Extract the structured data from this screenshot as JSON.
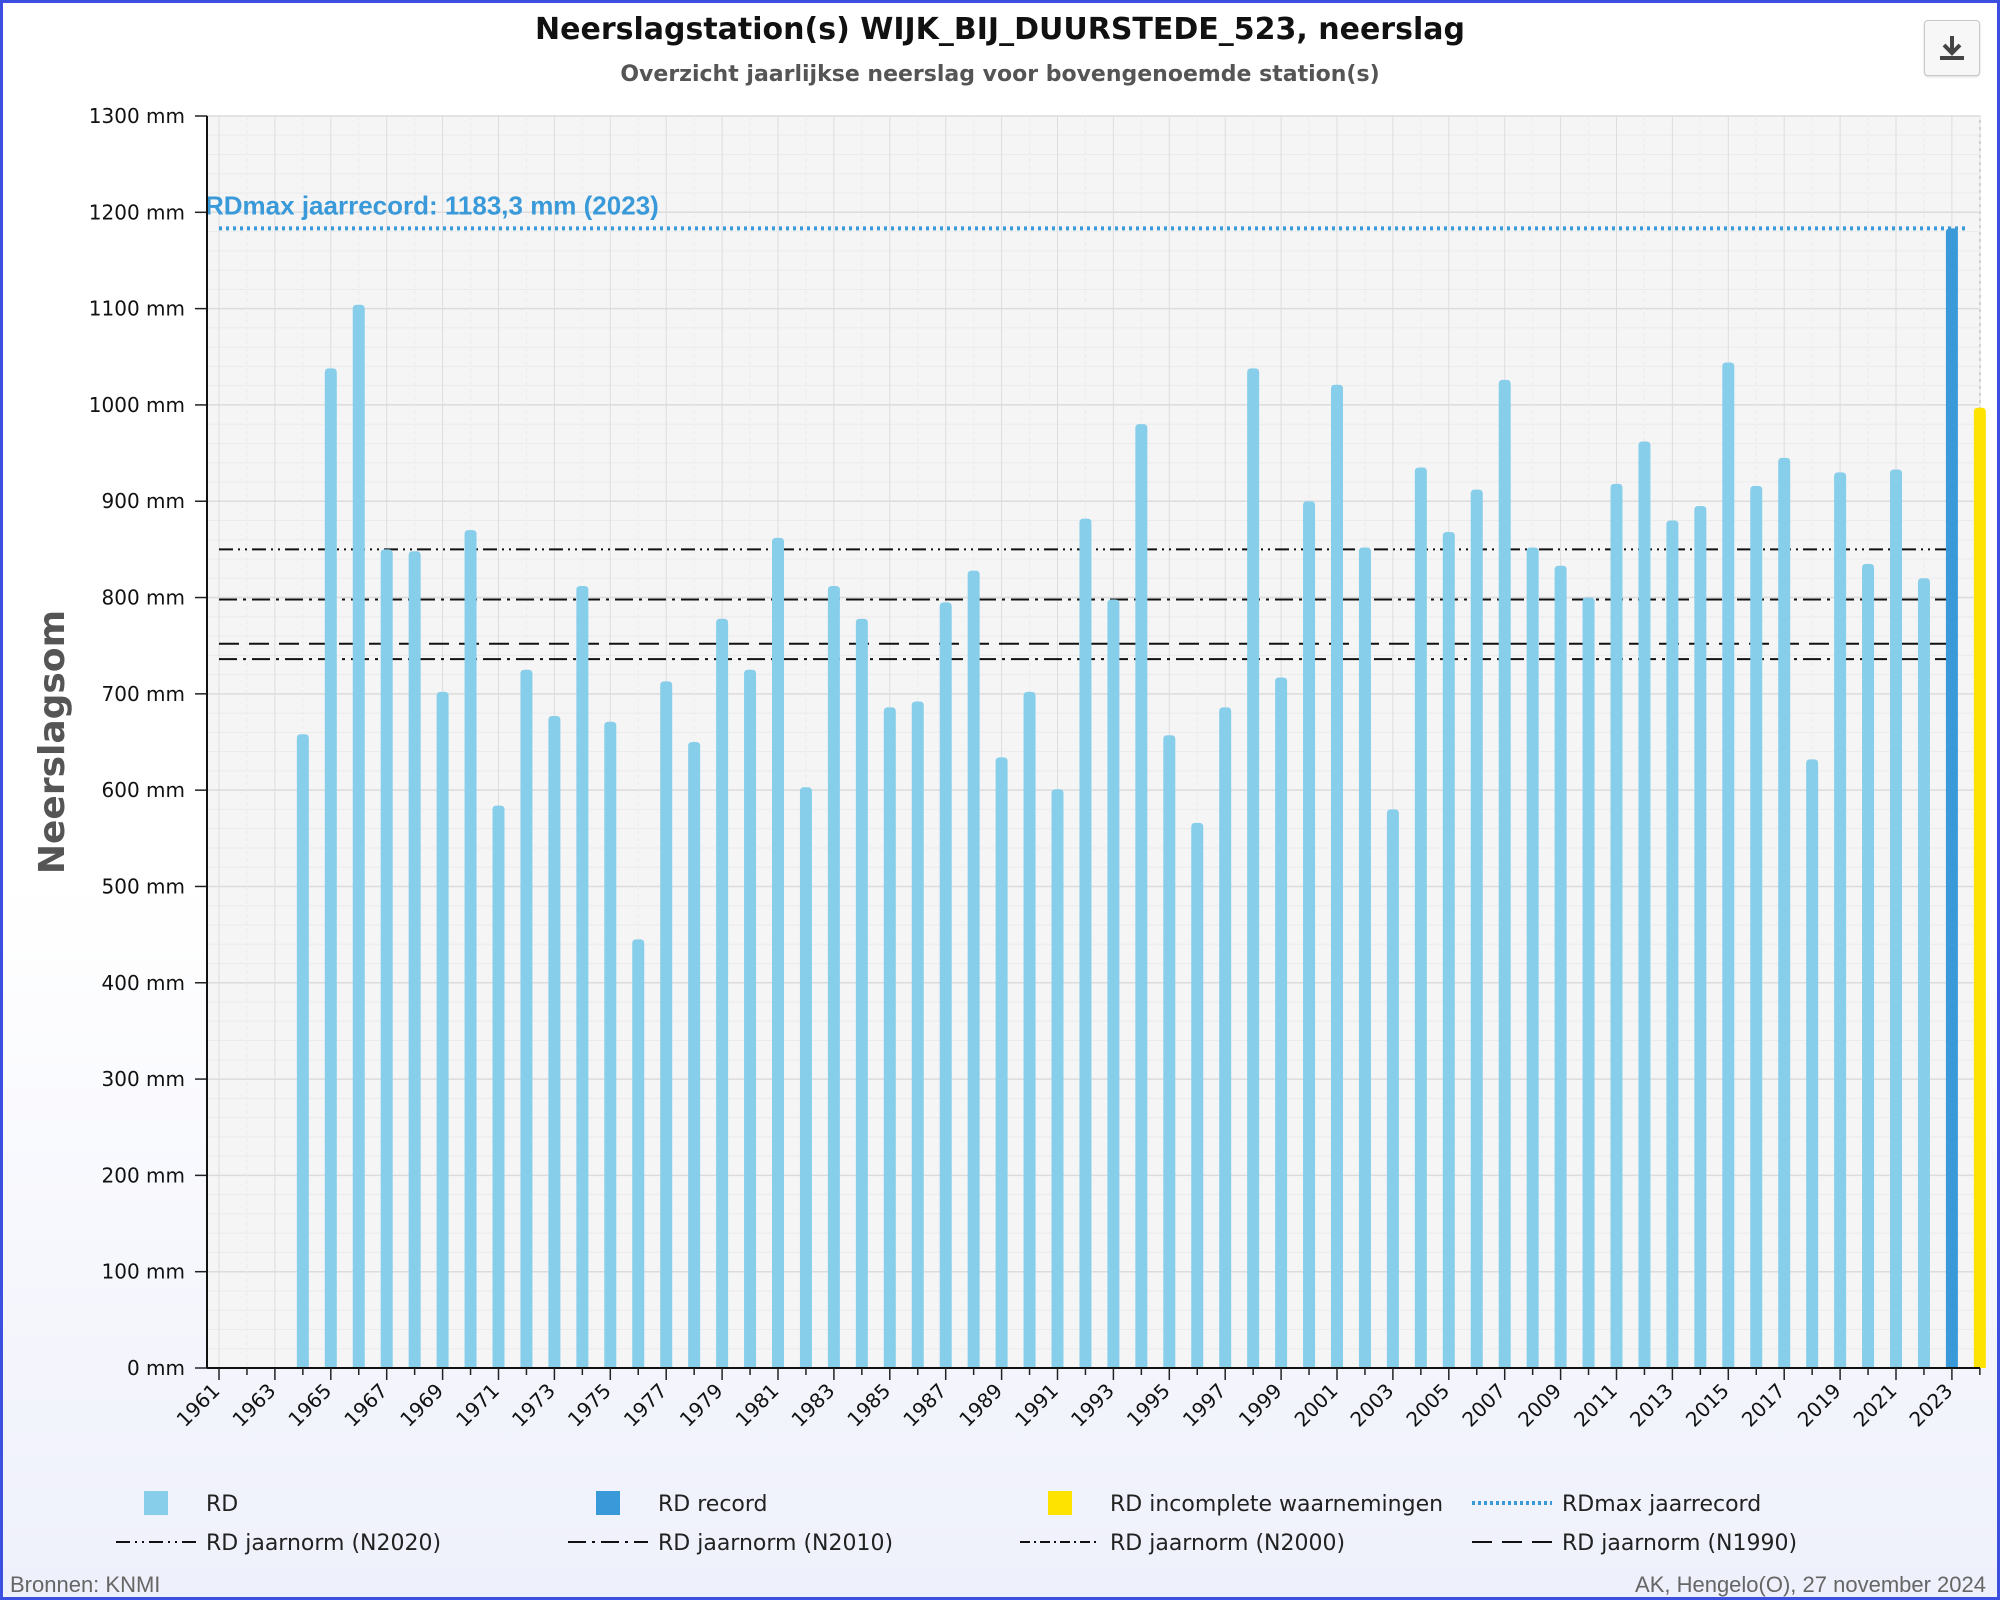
{
  "title": "Neerslagstation(s) WIJK_BIJ_DUURSTEDE_523, neerslag",
  "subtitle": "Overzicht jaarlijkse neerslag voor bovengenoemde station(s)",
  "export_icon": "download-icon",
  "record_annotation": "RDmax jaarrecord: 1183,3 mm (2023)",
  "source": "Bronnen: KNMI",
  "credit": "AK, Hengelo(O), 27 november 2024",
  "chart_data": {
    "type": "bar",
    "ylabel": "Neerslagsom",
    "ylim": [
      0,
      1300
    ],
    "y_ticks": [
      "0 mm",
      "100 mm",
      "200 mm",
      "300 mm",
      "400 mm",
      "500 mm",
      "600 mm",
      "700 mm",
      "800 mm",
      "900 mm",
      "1000 mm",
      "1100 mm",
      "1200 mm",
      "1300 mm"
    ],
    "x_ticks": [
      "1961",
      "1963",
      "1965",
      "1967",
      "1969",
      "1971",
      "1973",
      "1975",
      "1977",
      "1979",
      "1981",
      "1983",
      "1985",
      "1987",
      "1989",
      "1991",
      "1993",
      "1995",
      "1997",
      "1999",
      "2001",
      "2003",
      "2005",
      "2007",
      "2009",
      "2011",
      "2013",
      "2015",
      "2017",
      "2019",
      "2021",
      "2023"
    ],
    "grid": true,
    "colors": {
      "RD": "#87ceeb",
      "RD record": "#3a9ad9",
      "RD incomplete waarnemingen": "#ffe300",
      "RDmax jaarrecord": "#3a9ad9",
      "norm": "#111111"
    },
    "years": [
      1961,
      1962,
      1963,
      1964,
      1965,
      1966,
      1967,
      1968,
      1969,
      1970,
      1971,
      1972,
      1973,
      1974,
      1975,
      1976,
      1977,
      1978,
      1979,
      1980,
      1981,
      1982,
      1983,
      1984,
      1985,
      1986,
      1987,
      1988,
      1989,
      1990,
      1991,
      1992,
      1993,
      1994,
      1995,
      1996,
      1997,
      1998,
      1999,
      2000,
      2001,
      2002,
      2003,
      2004,
      2005,
      2006,
      2007,
      2008,
      2009,
      2010,
      2011,
      2012,
      2013,
      2014,
      2015,
      2016,
      2017,
      2018,
      2019,
      2020,
      2021,
      2022,
      2023,
      2024
    ],
    "values": [
      null,
      null,
      null,
      658,
      1038,
      1104,
      850,
      848,
      702,
      870,
      584,
      725,
      677,
      812,
      671,
      445,
      713,
      650,
      778,
      725,
      862,
      603,
      812,
      778,
      686,
      692,
      795,
      828,
      634,
      702,
      601,
      882,
      798,
      980,
      657,
      566,
      686,
      1038,
      717,
      900,
      1021,
      852,
      580,
      935,
      868,
      912,
      1026,
      852,
      833,
      800,
      918,
      962,
      880,
      895,
      1044,
      916,
      945,
      632,
      930,
      835,
      933,
      820,
      1183.3,
      997
    ],
    "series": [
      {
        "name": "RD",
        "kind": "bar",
        "years": "1964-2022"
      },
      {
        "name": "RD record",
        "kind": "bar",
        "years": "2023"
      },
      {
        "name": "RD incomplete waarnemingen",
        "kind": "bar",
        "years": "2024"
      }
    ],
    "reference_lines": [
      {
        "name": "RDmax jaarrecord",
        "value": 1183.3,
        "style": "dotted"
      },
      {
        "name": "RD jaarnorm (N2020)",
        "value": 850,
        "style": "dash-dot-dot"
      },
      {
        "name": "RD jaarnorm (N2010)",
        "value": 798,
        "style": "dash-dot"
      },
      {
        "name": "RD jaarnorm (N2000)",
        "value": 736,
        "style": "dash-dot"
      },
      {
        "name": "RD jaarnorm (N1990)",
        "value": 752,
        "style": "dashed"
      }
    ],
    "legend": [
      {
        "label": "RD",
        "symbol": "square",
        "color": "#87ceeb"
      },
      {
        "label": "RD record",
        "symbol": "square",
        "color": "#3a9ad9"
      },
      {
        "label": "RD incomplete waarnemingen",
        "symbol": "square",
        "color": "#ffe300"
      },
      {
        "label": "RDmax jaarrecord",
        "symbol": "dotted",
        "color": "#3a9ad9"
      },
      {
        "label": "RD jaarnorm (N2020)",
        "symbol": "dash-dot-dot",
        "color": "#111111"
      },
      {
        "label": "RD jaarnorm (N2010)",
        "symbol": "dash-dot",
        "color": "#111111"
      },
      {
        "label": "RD jaarnorm (N2000)",
        "symbol": "dash-dot-fine",
        "color": "#111111"
      },
      {
        "label": "RD jaarnorm (N1990)",
        "symbol": "dashed",
        "color": "#111111"
      }
    ],
    "legend_position": "bottom"
  }
}
